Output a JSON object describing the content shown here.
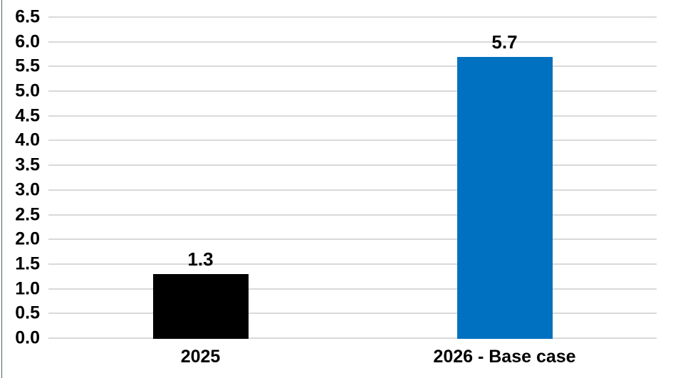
{
  "chart_data": {
    "type": "bar",
    "categories": [
      "2025",
      "2026 - Base case"
    ],
    "values": [
      1.3,
      5.7
    ],
    "value_labels": [
      "1.3",
      "5.7"
    ],
    "bar_colors": [
      "#000000",
      "#0070C0"
    ],
    "title": "",
    "xlabel": "",
    "ylabel": "",
    "ylim": [
      0,
      6.5
    ],
    "ytick_step": 0.5,
    "ytick_labels": [
      "0.0",
      "0.5",
      "1.0",
      "1.5",
      "2.0",
      "2.5",
      "3.0",
      "3.5",
      "4.0",
      "4.5",
      "5.0",
      "5.5",
      "6.0",
      "6.5"
    ],
    "grid": true,
    "gridline_color": "#D9D9D9",
    "axis_text_color": "#000000",
    "background_color": "#FFFFFF",
    "legend_position": "none"
  },
  "decorations": {
    "left_edge_line_color": "#52635A"
  }
}
